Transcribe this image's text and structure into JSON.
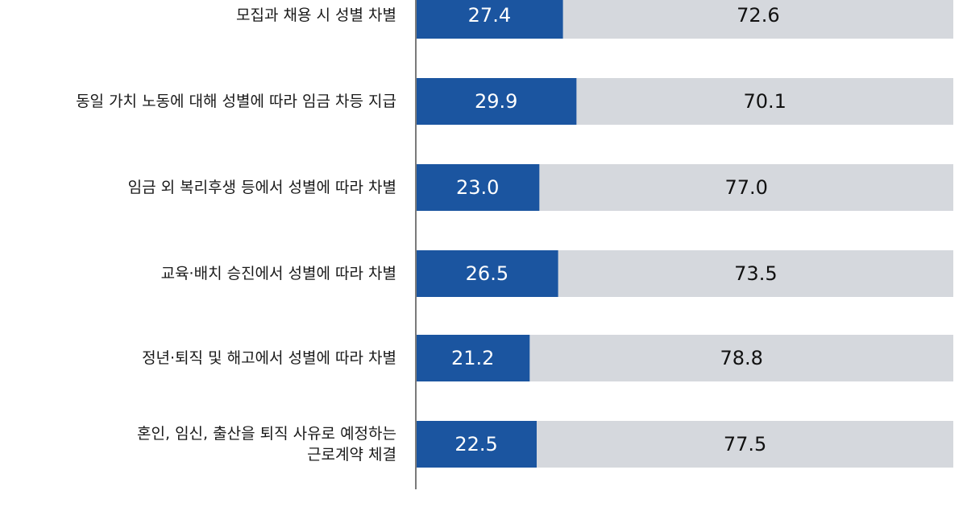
{
  "chart_data": {
    "type": "bar",
    "orientation": "horizontal",
    "stacked": true,
    "categories": [
      [
        "모집과 채용 시 성별 차별"
      ],
      [
        "동일 가치 노동에 대해 성별에 따라 임금 차등 지급"
      ],
      [
        "임금 외 복리후생 등에서 성별에 따라 차별"
      ],
      [
        "교육·배치 승진에서 성별에 따라 차별"
      ],
      [
        "정년·퇴직 및 해고에서 성별에 따라 차별"
      ],
      [
        "혼인, 임신, 출산을 퇴직 사유로 예정하는",
        "근로계약 체결"
      ]
    ],
    "series": [
      {
        "values": [
          27.4,
          29.9,
          23.0,
          26.5,
          21.2,
          22.5
        ],
        "color": "#1b55a0"
      },
      {
        "values": [
          72.6,
          70.1,
          77.0,
          73.5,
          78.8,
          77.5
        ],
        "color": "#d5d8dd"
      }
    ],
    "xlim": [
      0,
      100
    ],
    "grid": false,
    "legend": "none",
    "axis_color": "#7a7a7a"
  }
}
